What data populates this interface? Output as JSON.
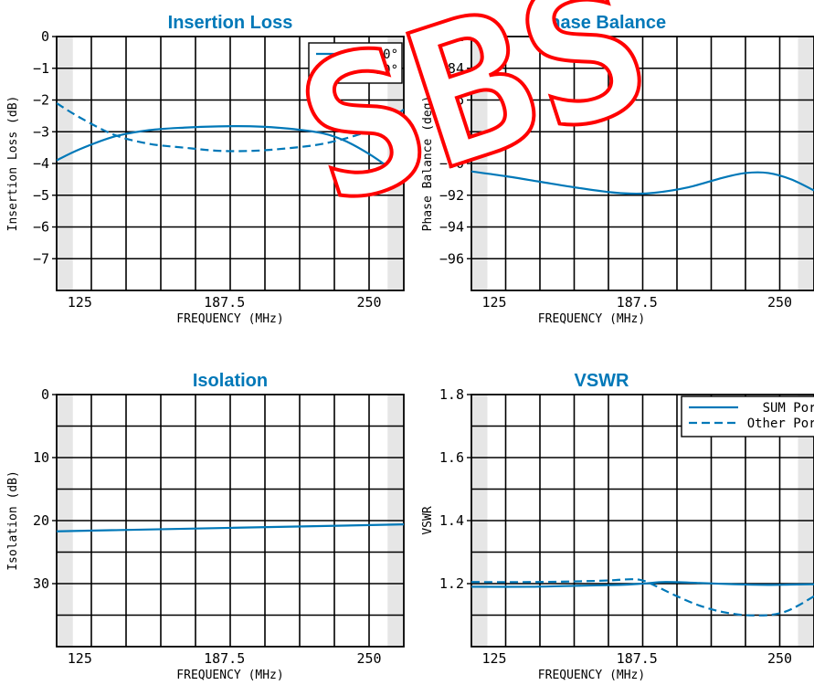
{
  "colors": {
    "series": "#0078b8",
    "band": "#e6e6e6",
    "grid": "#000000",
    "axis_text": "#000000",
    "watermark": "#ff0000"
  },
  "watermark": {
    "text": "SBS"
  },
  "chart_data": [
    {
      "type": "line",
      "title": "Insertion Loss",
      "xlabel": "FREQUENCY (MHz)",
      "ylabel": "Insertion Loss (dB)",
      "xlim": [
        115,
        265
      ],
      "ylim": [
        -8,
        0
      ],
      "xticks": [
        125,
        187.5,
        250
      ],
      "xtick_labels": [
        "125",
        "187.5",
        "250"
      ],
      "yticks": [
        0,
        -1,
        -2,
        -3,
        -4,
        -5,
        -6,
        -7
      ],
      "ytick_labels": [
        "0",
        "−1",
        "−2",
        "−3",
        "−4",
        "−5",
        "−6",
        "−7"
      ],
      "shaded_x": [
        [
          115,
          122
        ],
        [
          258,
          265
        ]
      ],
      "grid": true,
      "legend": "top-right",
      "series": [
        {
          "name": "0°",
          "dash": "solid",
          "x": [
            115,
            125,
            140,
            155,
            170,
            185,
            200,
            215,
            230,
            240,
            250,
            258,
            265
          ],
          "y": [
            -3.9,
            -3.55,
            -3.15,
            -2.95,
            -2.87,
            -2.83,
            -2.83,
            -2.9,
            -3.05,
            -3.3,
            -3.7,
            -4.1,
            -4.5
          ]
        },
        {
          "name": "-90°",
          "dash": "dashed",
          "x": [
            115,
            125,
            140,
            155,
            170,
            185,
            200,
            215,
            230,
            245,
            255,
            265
          ],
          "y": [
            -2.1,
            -2.55,
            -3.1,
            -3.38,
            -3.5,
            -3.6,
            -3.6,
            -3.52,
            -3.38,
            -3.1,
            -2.8,
            -2.3
          ]
        }
      ]
    },
    {
      "type": "line",
      "title": "Phase Balance",
      "xlabel": "FREQUENCY (MHz)",
      "ylabel": "Phase Balance (deg)",
      "xlim": [
        115,
        265
      ],
      "ylim": [
        -98,
        -82
      ],
      "xticks": [
        125,
        187.5,
        250
      ],
      "xtick_labels": [
        "125",
        "187.5",
        "250"
      ],
      "yticks": [
        -82,
        -84,
        -86,
        -88,
        -90,
        -92,
        -94,
        -96
      ],
      "ytick_labels": [
        "−82",
        "−84",
        "−86",
        "−88",
        "−90",
        "−92",
        "−94",
        "−96"
      ],
      "shaded_x": [
        [
          115,
          122
        ],
        [
          258,
          265
        ]
      ],
      "grid": true,
      "series": [
        {
          "name": "",
          "dash": "solid",
          "x": [
            115,
            130,
            145,
            160,
            175,
            185,
            195,
            210,
            225,
            235,
            245,
            255,
            265
          ],
          "y": [
            -90.5,
            -90.8,
            -91.15,
            -91.5,
            -91.8,
            -91.9,
            -91.85,
            -91.5,
            -90.9,
            -90.6,
            -90.6,
            -91.0,
            -91.7
          ]
        }
      ]
    },
    {
      "type": "line",
      "title": "Isolation",
      "xlabel": "FREQUENCY (MHz)",
      "ylabel": "Isolation (dB)",
      "xlim": [
        115,
        265
      ],
      "ylim": [
        40,
        0
      ],
      "xticks": [
        125,
        187.5,
        250
      ],
      "xtick_labels": [
        "125",
        "187.5",
        "250"
      ],
      "yticks": [
        0,
        10,
        20,
        30
      ],
      "ytick_labels": [
        "0",
        "10",
        "20",
        "30"
      ],
      "shaded_x": [
        [
          115,
          122
        ],
        [
          258,
          265
        ]
      ],
      "grid": true,
      "series": [
        {
          "name": "",
          "dash": "solid",
          "x": [
            115,
            265
          ],
          "y": [
            21.7,
            20.6
          ]
        }
      ]
    },
    {
      "type": "line",
      "title": "VSWR",
      "xlabel": "FREQUENCY (MHz)",
      "ylabel": "VSWR",
      "xlim": [
        115,
        265
      ],
      "ylim": [
        1.0,
        1.8
      ],
      "xticks": [
        125,
        187.5,
        250
      ],
      "xtick_labels": [
        "125",
        "187.5",
        "250"
      ],
      "yticks": [
        1.8,
        1.6,
        1.4,
        1.2
      ],
      "ytick_labels": [
        "1.8",
        "1.6",
        "1.4",
        "1.2"
      ],
      "shaded_x": [
        [
          115,
          122
        ],
        [
          258,
          265
        ]
      ],
      "grid": true,
      "legend": "top-right",
      "series": [
        {
          "name": "SUM Port",
          "dash": "solid",
          "x": [
            115,
            140,
            160,
            180,
            190,
            200,
            215,
            230,
            245,
            255,
            265
          ],
          "y": [
            1.19,
            1.19,
            1.193,
            1.196,
            1.2,
            1.205,
            1.202,
            1.198,
            1.196,
            1.197,
            1.198
          ]
        },
        {
          "name": "Other Port",
          "dash": "dashed",
          "x": [
            115,
            140,
            160,
            175,
            185,
            190,
            195,
            205,
            215,
            225,
            235,
            245,
            252,
            258,
            265
          ],
          "y": [
            1.205,
            1.205,
            1.207,
            1.21,
            1.214,
            1.21,
            1.195,
            1.16,
            1.13,
            1.11,
            1.1,
            1.1,
            1.11,
            1.13,
            1.16
          ]
        }
      ]
    }
  ]
}
